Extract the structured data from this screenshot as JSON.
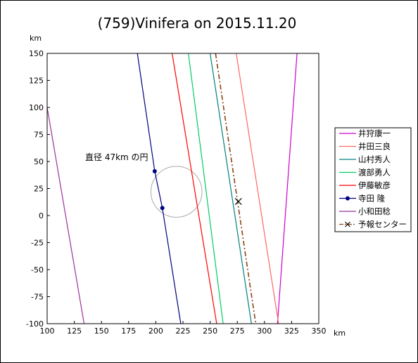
{
  "chart_data": {
    "type": "line",
    "title": "(759)Vinifera on 2015.11.20",
    "xlabel": "km",
    "ylabel": "km",
    "xlim": [
      100,
      350
    ],
    "ylim": [
      -100,
      150
    ],
    "xticks": [
      100,
      125,
      150,
      175,
      200,
      225,
      250,
      275,
      300,
      325,
      350
    ],
    "yticks": [
      150,
      125,
      100,
      75,
      50,
      25,
      0,
      -25,
      -50,
      -75,
      -100
    ],
    "grid": false,
    "legend_position": "right",
    "annotation": "直径 47km の円",
    "circle": {
      "cx": 219,
      "cy": 22,
      "r": 23.5
    },
    "series": [
      {
        "name": "井狩康一",
        "color": "#cc00cc",
        "style": "solid",
        "points": [
          [
            330,
            150
          ],
          [
            312,
            -100
          ]
        ]
      },
      {
        "name": "井田三良",
        "color": "#ff6666",
        "style": "solid",
        "points": [
          [
            274,
            150
          ],
          [
            313,
            -100
          ]
        ]
      },
      {
        "name": "山村秀人",
        "color": "#008080",
        "style": "solid",
        "points": [
          [
            250,
            150
          ],
          [
            288,
            -100
          ]
        ]
      },
      {
        "name": "渡部勇人",
        "color": "#00cc66",
        "style": "solid",
        "points": [
          [
            230,
            150
          ],
          [
            262,
            -100
          ]
        ]
      },
      {
        "name": "伊藤敏彦",
        "color": "#ff0000",
        "style": "solid",
        "points": [
          [
            215,
            150
          ],
          [
            256,
            -100
          ]
        ]
      },
      {
        "name": "寺田 隆",
        "color": "#000080",
        "style": "solid",
        "markers": [
          [
            199,
            41
          ],
          [
            206,
            7
          ]
        ],
        "points": [
          [
            183,
            150
          ],
          [
            199,
            41
          ],
          [
            206,
            7
          ],
          [
            223,
            -100
          ]
        ]
      },
      {
        "name": "小和田稔",
        "color": "#993399",
        "style": "solid",
        "points": [
          [
            100,
            100
          ],
          [
            134,
            -100
          ]
        ]
      },
      {
        "name": "予報センター",
        "color": "#8b4513",
        "style": "dashdot",
        "marker": [
          276,
          13
        ],
        "points": [
          [
            255,
            150
          ],
          [
            292,
            -100
          ]
        ]
      }
    ]
  }
}
